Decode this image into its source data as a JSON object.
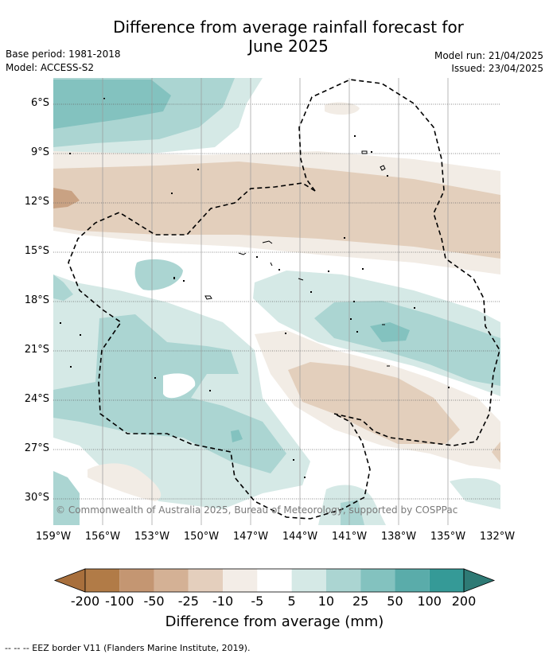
{
  "header": {
    "title_line1": "Difference from average rainfall forecast for",
    "title_line2": "June 2025",
    "base_period": "Base period: 1981-2018",
    "model": "Model: ACCESS-S2",
    "model_run": "Model run: 21/04/2025",
    "issued": "Issued: 23/04/2025"
  },
  "map": {
    "lat_labels": [
      "6°S",
      "9°S",
      "12°S",
      "15°S",
      "18°S",
      "21°S",
      "24°S",
      "27°S",
      "30°S"
    ],
    "lon_labels": [
      "159°W",
      "156°W",
      "153°W",
      "150°W",
      "147°W",
      "144°W",
      "141°W",
      "138°W",
      "135°W",
      "132°W"
    ],
    "copyright": "© Commonwealth of Australia 2025, Bureau of Meteorology, supported by COSPPac",
    "colors": {
      "dry_strong": "#c9a283",
      "dry_mid": "#e3cfbc",
      "dry_weak": "#f2ece5",
      "neutral": "#ffffff",
      "wet_weak": "#d5e9e6",
      "wet_mid": "#abd5d2",
      "wet_strong": "#83c2bf"
    }
  },
  "colorbar": {
    "ticks": [
      "-200",
      "-100",
      "-50",
      "-25",
      "-10",
      "-5",
      "5",
      "10",
      "25",
      "50",
      "100",
      "200"
    ],
    "colors": [
      "#a86f3c",
      "#b17b47",
      "#c49672",
      "#d4b195",
      "#e4cfbd",
      "#f3ede7",
      "#ffffff",
      "#d5e9e6",
      "#abd5d2",
      "#83c2bf",
      "#5aacaa",
      "#359a97",
      "#2e7a75"
    ],
    "label": "Difference from average (mm)"
  },
  "footer": {
    "eez_note": "--  --  -- EEZ border V11 (Flanders Marine Institute, 2019)."
  }
}
